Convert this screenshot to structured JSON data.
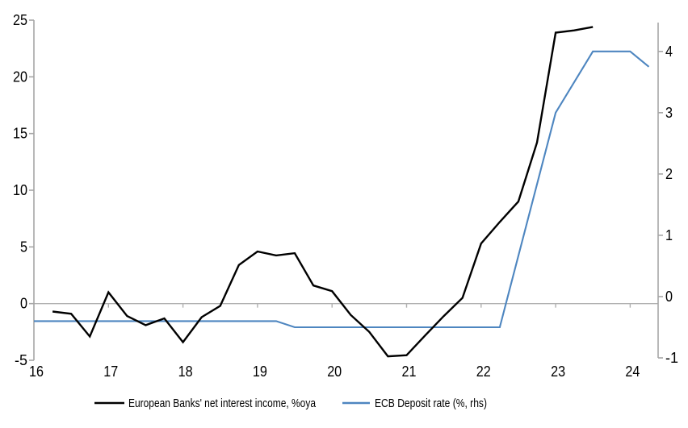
{
  "chart_data": {
    "type": "line",
    "title": "",
    "legend_position": "bottom",
    "grid": "zero-line-only",
    "x_axis": {
      "ticks": [
        16,
        17,
        18,
        19,
        20,
        21,
        22,
        23,
        24
      ],
      "range": [
        16,
        24.375
      ]
    },
    "left_axis": {
      "ticks": [
        -5,
        0,
        5,
        10,
        15,
        20,
        25
      ],
      "range": [
        -5,
        25
      ]
    },
    "right_axis": {
      "ticks": [
        -1,
        0,
        1,
        2,
        3,
        4
      ],
      "range": [
        -1,
        4.51
      ]
    },
    "colors": {
      "axis": "#a6a6a6",
      "zero_line": "#b0b0b0",
      "series_black": "#000000",
      "series_blue": "#4e86c0"
    },
    "series": [
      {
        "name": "European Banks' net interest income, %oya",
        "axis": "left",
        "color": "#000000",
        "x": [
          16.25,
          16.5,
          16.75,
          17.0,
          17.25,
          17.5,
          17.75,
          18.0,
          18.25,
          18.5,
          18.75,
          19.0,
          19.25,
          19.5,
          19.75,
          20.0,
          20.25,
          20.5,
          20.75,
          21.0,
          21.25,
          21.5,
          21.75,
          22.0,
          22.25,
          22.5,
          22.75,
          23.0,
          23.25,
          23.5
        ],
        "y": [
          -0.7,
          -0.9,
          -2.9,
          1.0,
          -1.1,
          -1.9,
          -1.3,
          -3.4,
          -1.2,
          -0.2,
          3.4,
          4.6,
          4.25,
          4.45,
          1.6,
          1.1,
          -1.0,
          -2.5,
          -4.65,
          -4.55,
          -2.8,
          -1.1,
          0.5,
          5.3,
          7.2,
          9.0,
          14.2,
          23.9,
          24.1,
          24.4
        ]
      },
      {
        "name": "ECB Deposit rate (%, rhs)",
        "axis": "right",
        "color": "#4e86c0",
        "x": [
          16.0,
          19.25,
          19.5,
          22.25,
          23.0,
          23.5,
          24.0,
          24.25
        ],
        "y": [
          -0.4,
          -0.4,
          -0.5,
          -0.5,
          3.0,
          4.0,
          4.0,
          3.75
        ]
      }
    ],
    "legend": [
      "European Banks' net interest income, %oya",
      "ECB Deposit rate (%, rhs)"
    ]
  }
}
